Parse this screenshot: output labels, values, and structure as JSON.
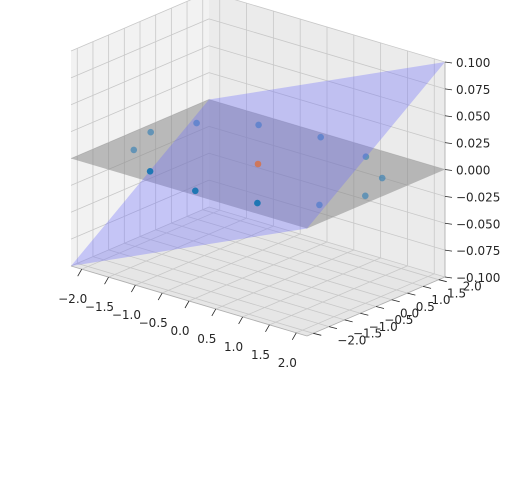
{
  "chart_data": {
    "type": "scatter",
    "projection": "3d",
    "title": "",
    "xlabel": "",
    "ylabel": "",
    "zlabel": "",
    "xlim": [
      -2.2,
      2.2
    ],
    "ylim": [
      -2.2,
      2.2
    ],
    "zlim": [
      -0.1,
      0.1
    ],
    "x_ticks": [
      "−2.0",
      "−1.5",
      "−1.0",
      "−0.5",
      "0.0",
      "0.5",
      "1.0",
      "1.5",
      "2.0"
    ],
    "y_ticks": [
      "−2.0",
      "−1.5",
      "−1.0",
      "−0.5",
      "0.0",
      "0.5",
      "1.0",
      "1.5",
      "2.0"
    ],
    "z_ticks": [
      "−0.100",
      "−0.075",
      "−0.050",
      "−0.025",
      "0.000",
      "0.025",
      "0.050",
      "0.075",
      "0.100"
    ],
    "grid": true,
    "colors": {
      "points": "#1f77b4",
      "highlight": "#ff7f0e",
      "plane_tilted": "#6b6bff",
      "plane_flat": "#8a8a8a",
      "pane_back": "#ebebeb",
      "pane_side": "#f2f2f2",
      "pane_floor": "#e6e6e6",
      "gridline": "#c8c8c8"
    },
    "points": [
      {
        "x": 1.73,
        "y": 1.0,
        "z": 0.0
      },
      {
        "x": 1.0,
        "y": 1.73,
        "z": 0.0
      },
      {
        "x": 0.0,
        "y": 2.0,
        "z": 0.0
      },
      {
        "x": -1.0,
        "y": 1.73,
        "z": 0.0
      },
      {
        "x": -1.73,
        "y": 1.0,
        "z": 0.0
      },
      {
        "x": -2.0,
        "y": 0.0,
        "z": 0.0
      },
      {
        "x": -1.73,
        "y": -1.0,
        "z": 0.0
      },
      {
        "x": -1.0,
        "y": -1.73,
        "z": 0.0
      },
      {
        "x": 0.0,
        "y": -2.0,
        "z": 0.0
      },
      {
        "x": 1.0,
        "y": -1.73,
        "z": 0.0
      },
      {
        "x": 1.73,
        "y": -1.0,
        "z": 0.0
      },
      {
        "x": 2.0,
        "y": 0.0,
        "z": 0.0
      }
    ],
    "highlight_point": {
      "x": 0.0,
      "y": 0.0,
      "z": 0.0
    },
    "planes": [
      {
        "name": "",
        "z_at_corners": {
          "x-y-": -0.1,
          "x+y-": 0.0,
          "x+y+": 0.1,
          "x-y+": 0.0
        }
      },
      {
        "name": "",
        "z_at_corners": {
          "x-y-": 0.0,
          "x+y-": 0.0,
          "x+y+": 0.0,
          "x-y+": 0.0
        }
      }
    ]
  }
}
